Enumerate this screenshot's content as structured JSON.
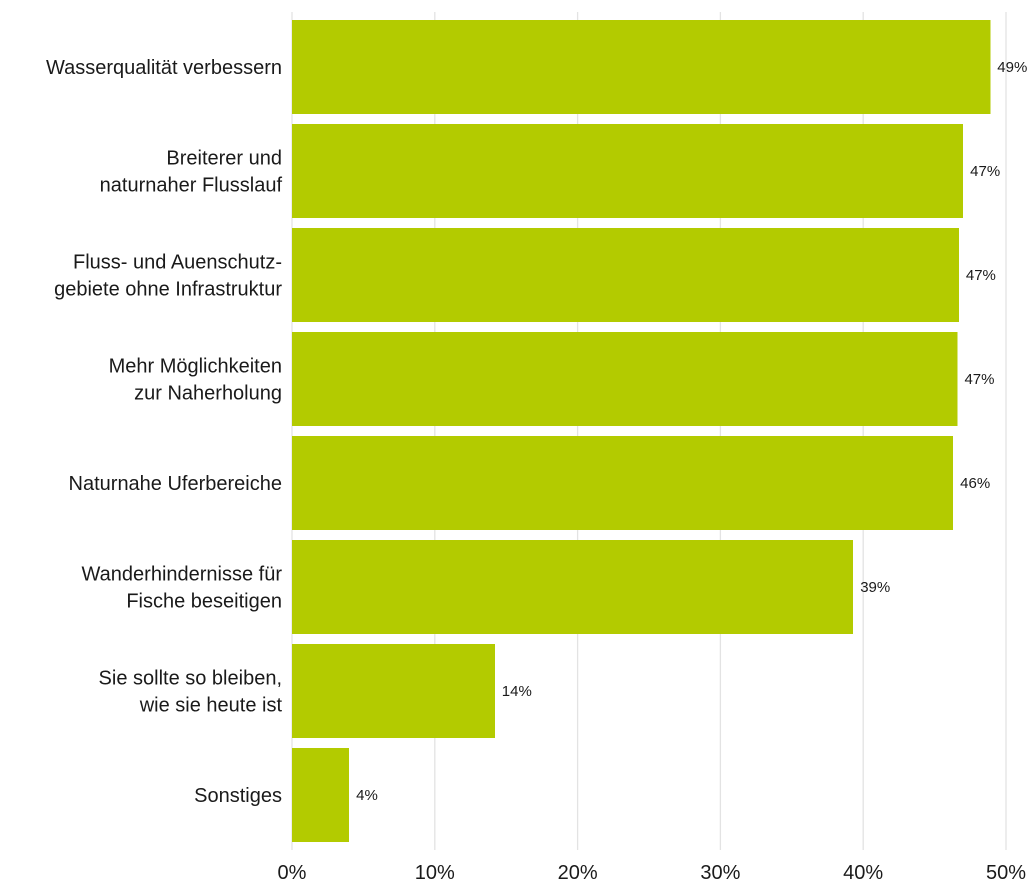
{
  "chart_data": {
    "type": "bar",
    "orientation": "horizontal",
    "title": "",
    "xlabel": "",
    "ylabel": "",
    "categories": [
      [
        "Wasserqualität verbessern"
      ],
      [
        "Breiterer und",
        "naturnaher Flusslauf"
      ],
      [
        "Fluss- und Auenschutz-",
        "gebiete ohne Infrastruktur"
      ],
      [
        "Mehr Möglichkeiten",
        "zur Naherholung"
      ],
      [
        "Naturnahe Uferbereiche"
      ],
      [
        "Wanderhindernisse für",
        "Fische beseitigen"
      ],
      [
        "Sie sollte so bleiben,",
        "wie sie heute ist"
      ],
      [
        "Sonstiges"
      ]
    ],
    "values": [
      48.9,
      47.0,
      46.7,
      46.6,
      46.3,
      39.3,
      14.2,
      4.0
    ],
    "value_labels": [
      "49%",
      "47%",
      "47%",
      "47%",
      "46%",
      "39%",
      "14%",
      "4%"
    ],
    "xlim": [
      0,
      50
    ],
    "xticks": [
      0,
      10,
      20,
      30,
      40,
      50
    ],
    "xtick_labels": [
      "0%",
      "10%",
      "20%",
      "30%",
      "40%",
      "50%"
    ],
    "grid": true,
    "legend": "none",
    "bar_color": "#b3cb00",
    "grid_color": "#e3e3e3",
    "text_color": "#1a1a1a"
  }
}
